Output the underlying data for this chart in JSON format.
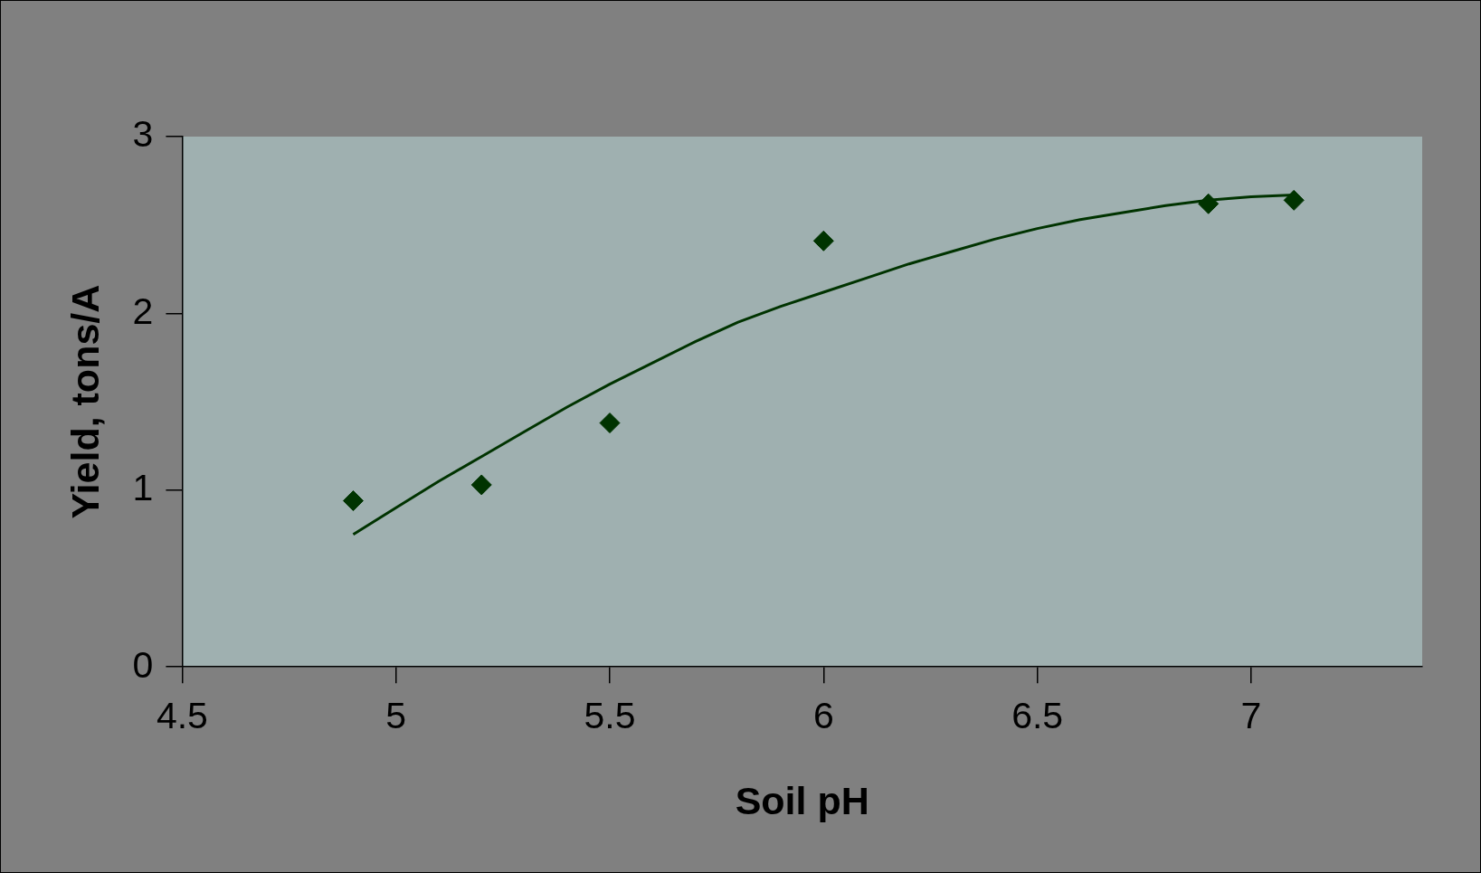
{
  "chart_data": {
    "type": "scatter",
    "xlabel": "Soil pH",
    "ylabel": "Yield, tons/A",
    "xlim": [
      4.5,
      7.4
    ],
    "xticks": [
      4.5,
      5,
      5.5,
      6,
      6.5,
      7
    ],
    "ylim": [
      0,
      3
    ],
    "yticks": [
      0,
      1,
      2,
      3
    ],
    "grid": false,
    "legend": false,
    "marker": "diamond",
    "series": [
      {
        "type": "scatter",
        "color": "#003300",
        "x": [
          4.9,
          5.2,
          5.5,
          6.0,
          6.9,
          7.1
        ],
        "values": [
          0.94,
          1.03,
          1.38,
          2.41,
          2.62,
          2.64
        ]
      },
      {
        "type": "line",
        "color": "#003300",
        "marker": "none",
        "x": [
          4.9,
          5.0,
          5.1,
          5.2,
          5.3,
          5.4,
          5.5,
          5.6,
          5.7,
          5.8,
          5.9,
          6.0,
          6.1,
          6.2,
          6.3,
          6.4,
          6.5,
          6.6,
          6.7,
          6.8,
          6.9,
          7.0,
          7.1
        ],
        "values": [
          0.75,
          0.9,
          1.05,
          1.19,
          1.33,
          1.47,
          1.6,
          1.72,
          1.84,
          1.95,
          2.04,
          2.12,
          2.2,
          2.28,
          2.35,
          2.42,
          2.48,
          2.53,
          2.57,
          2.61,
          2.64,
          2.66,
          2.67
        ]
      }
    ]
  }
}
